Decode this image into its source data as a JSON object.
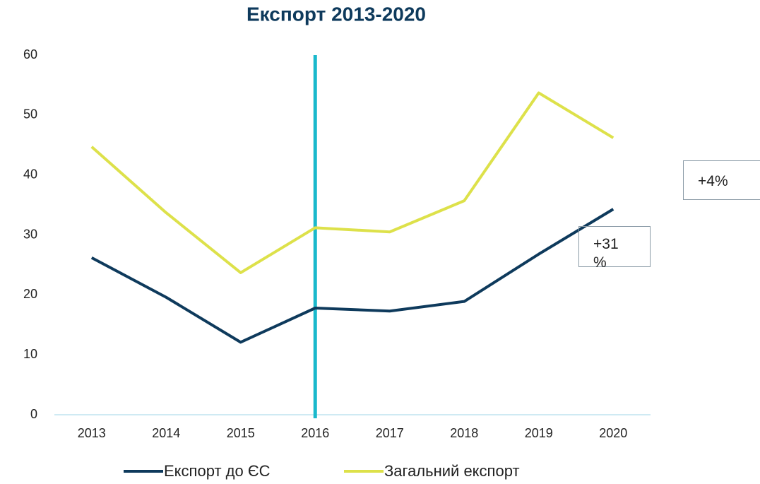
{
  "chart_data": {
    "type": "line",
    "title": "Експорт 2013-2020",
    "categories": [
      "2013",
      "2014",
      "2015",
      "2016",
      "2017",
      "2018",
      "2019",
      "2020"
    ],
    "series": [
      {
        "name": "Експорт до ЄС",
        "color": "#0e3a5c",
        "values": [
          26.2,
          19.6,
          12.1,
          17.8,
          17.3,
          18.9,
          26.8,
          34.3
        ]
      },
      {
        "name": "Загальний експорт",
        "color": "#dde14a",
        "values": [
          44.7,
          33.7,
          23.7,
          31.2,
          30.5,
          35.7,
          53.7,
          46.2
        ]
      }
    ],
    "ylim": [
      0,
      60
    ],
    "yticks": [
      0,
      10,
      20,
      30,
      40,
      50,
      60
    ],
    "grid": false,
    "vline": {
      "x": "2016",
      "color": "#1ab9cc"
    },
    "annotations": [
      "+4%",
      "+31 %"
    ],
    "legend": "bottom"
  }
}
